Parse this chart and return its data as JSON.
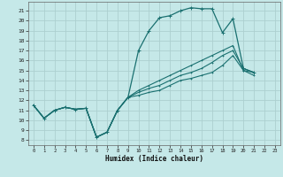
{
  "xlabel": "Humidex (Indice chaleur)",
  "xlim": [
    -0.5,
    23.5
  ],
  "ylim": [
    7.5,
    21.9
  ],
  "yticks": [
    8,
    9,
    10,
    11,
    12,
    13,
    14,
    15,
    16,
    17,
    18,
    19,
    20,
    21
  ],
  "xticks": [
    0,
    1,
    2,
    3,
    4,
    5,
    6,
    7,
    8,
    9,
    10,
    11,
    12,
    13,
    14,
    15,
    16,
    17,
    18,
    19,
    20,
    21,
    22,
    23
  ],
  "bg_color": "#c5e8e8",
  "grid_color": "#acd0d0",
  "line_color": "#1a7070",
  "line1_x": [
    0,
    1,
    2,
    3,
    4,
    5,
    6,
    7,
    8,
    9,
    10,
    11,
    12,
    13,
    14,
    15,
    16,
    17,
    18,
    19,
    20,
    21
  ],
  "line1_y": [
    11.5,
    10.2,
    11.0,
    11.3,
    11.1,
    11.2,
    8.3,
    8.8,
    11.0,
    12.3,
    17.0,
    19.0,
    20.3,
    20.5,
    21.0,
    21.3,
    21.2,
    21.2,
    18.8,
    20.2,
    15.2,
    14.8
  ],
  "line2_x": [
    0,
    1,
    2,
    3,
    4,
    5,
    6,
    7,
    8,
    9,
    10,
    11,
    12,
    13,
    14,
    15,
    16,
    17,
    18,
    19,
    20,
    21,
    22,
    23
  ],
  "line2_y": [
    11.5,
    10.2,
    11.0,
    11.3,
    11.1,
    11.2,
    8.3,
    8.8,
    11.0,
    12.3,
    13.0,
    13.5,
    14.0,
    14.5,
    15.0,
    15.5,
    16.0,
    16.5,
    17.0,
    17.5,
    15.0,
    14.8,
    null,
    null
  ],
  "line3_x": [
    0,
    1,
    2,
    3,
    4,
    5,
    6,
    7,
    8,
    9,
    10,
    11,
    12,
    13,
    14,
    15,
    16,
    17,
    18,
    19,
    20,
    21,
    22,
    23
  ],
  "line3_y": [
    11.5,
    10.2,
    11.0,
    11.3,
    11.1,
    11.2,
    8.3,
    8.8,
    11.0,
    12.3,
    12.8,
    13.2,
    13.5,
    14.0,
    14.5,
    14.8,
    15.2,
    15.8,
    16.5,
    17.0,
    15.2,
    14.8,
    null,
    null
  ],
  "line4_x": [
    0,
    1,
    2,
    3,
    4,
    5,
    6,
    7,
    8,
    9,
    10,
    11,
    12,
    13,
    14,
    15,
    16,
    17,
    18,
    19,
    20,
    21,
    22,
    23
  ],
  "line4_y": [
    11.5,
    10.2,
    11.0,
    11.3,
    11.1,
    11.2,
    8.3,
    8.8,
    11.0,
    12.3,
    12.5,
    12.8,
    13.0,
    13.5,
    14.0,
    14.2,
    14.5,
    14.8,
    15.5,
    16.5,
    15.0,
    14.5,
    null,
    null
  ]
}
